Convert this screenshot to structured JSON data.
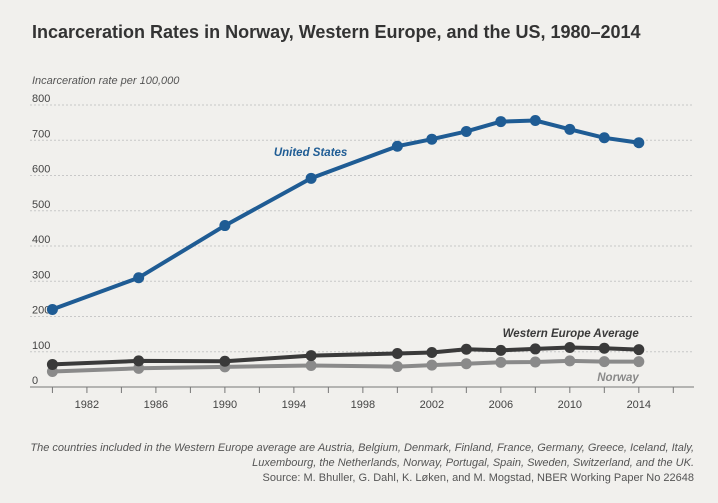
{
  "colors": {
    "background": "#f1f0ed",
    "gridline": "#c8c8c8",
    "us": "#1f5c94",
    "western_europe": "#3a3a3a",
    "norway": "#8a8a8a",
    "text": "#333333"
  },
  "chart_data": {
    "type": "line",
    "title": "Incarceration Rates in Norway, Western Europe, and the US, 1980–2014",
    "ylabel": "Incarceration rate per 100,000",
    "xlabel": "",
    "ylim": [
      0,
      800
    ],
    "y_ticks": [
      0,
      100,
      200,
      300,
      400,
      500,
      600,
      700,
      800
    ],
    "x_ticks": [
      1982,
      1986,
      1990,
      1994,
      1998,
      2002,
      2006,
      2010,
      2014
    ],
    "xlim": [
      1978.7,
      2017.2
    ],
    "grid": true,
    "series": [
      {
        "name": "United States",
        "color_key": "us",
        "x": [
          1980,
          1985,
          1990,
          1995,
          2000,
          2002,
          2004,
          2006,
          2008,
          2010,
          2012,
          2014
        ],
        "values": [
          220,
          310,
          458,
          592,
          683,
          703,
          725,
          753,
          756,
          731,
          707,
          693
        ]
      },
      {
        "name": "Western Europe Average",
        "color_key": "western_europe",
        "x": [
          1980,
          1985,
          1990,
          1995,
          2000,
          2002,
          2004,
          2006,
          2008,
          2010,
          2012,
          2014
        ],
        "values": [
          64,
          74,
          73,
          89,
          95,
          98,
          107,
          104,
          108,
          112,
          110,
          106
        ]
      },
      {
        "name": "Norway",
        "color_key": "norway",
        "x": [
          1980,
          1985,
          1990,
          1995,
          2000,
          2002,
          2004,
          2006,
          2008,
          2010,
          2012,
          2014
        ],
        "values": [
          44,
          53,
          57,
          61,
          58,
          62,
          66,
          70,
          71,
          74,
          72,
          72
        ]
      }
    ]
  },
  "footnote": "The countries included in the Western Europe average are Austria, Belgium, Denmark, Finland, France, Germany, Greece, Iceland, Italy, Luxembourg, the Netherlands, Norway, Portugal, Spain, Sweden, Switzerland, and the UK.",
  "source": "Source: M. Bhuller, G. Dahl, K. Løken, and M. Mogstad, NBER Working Paper No 22648"
}
